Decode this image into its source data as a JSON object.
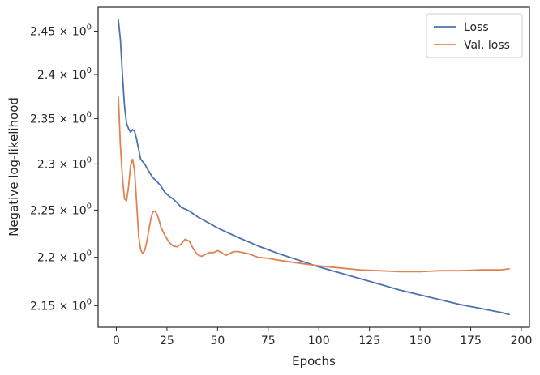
{
  "chart_data": {
    "type": "line",
    "title": "",
    "xlabel": "Epochs",
    "ylabel": "Negative log-likelihood",
    "xlim": [
      -9,
      204
    ],
    "ylim": [
      2.128,
      2.478
    ],
    "y_scale": "log",
    "grid": false,
    "legend_position": "top-right",
    "x_ticks": [
      0,
      25,
      50,
      75,
      100,
      125,
      150,
      175,
      200
    ],
    "x_tick_labels": [
      "0",
      "25",
      "50",
      "75",
      "100",
      "125",
      "150",
      "175",
      "200"
    ],
    "y_ticks": [
      2.15,
      2.2,
      2.25,
      2.3,
      2.35,
      2.4,
      2.45
    ],
    "y_tick_mantissas": [
      "2.15",
      "2.2",
      "2.25",
      "2.3",
      "2.35",
      "2.4",
      "2.45"
    ],
    "y_tick_base": "10",
    "y_tick_exponent": "0",
    "series": [
      {
        "name": "Loss",
        "color": "#4c72b0",
        "x": [
          1,
          2,
          3,
          4,
          5,
          6,
          7,
          8,
          9,
          10,
          11,
          12,
          14,
          16,
          18,
          20,
          22,
          24,
          26,
          28,
          30,
          32,
          34,
          36,
          38,
          40,
          45,
          50,
          55,
          60,
          70,
          80,
          90,
          100,
          110,
          120,
          130,
          140,
          150,
          160,
          170,
          180,
          190,
          194
        ],
        "y": [
          2.463,
          2.44,
          2.4,
          2.365,
          2.345,
          2.339,
          2.335,
          2.338,
          2.336,
          2.327,
          2.316,
          2.305,
          2.3,
          2.292,
          2.285,
          2.281,
          2.276,
          2.269,
          2.265,
          2.262,
          2.258,
          2.253,
          2.251,
          2.249,
          2.246,
          2.243,
          2.237,
          2.231,
          2.226,
          2.221,
          2.212,
          2.204,
          2.197,
          2.19,
          2.184,
          2.178,
          2.172,
          2.166,
          2.161,
          2.156,
          2.151,
          2.147,
          2.143,
          2.141
        ]
      },
      {
        "name": "Val. loss",
        "color": "#dd8452",
        "x": [
          1,
          2,
          3,
          4,
          5,
          6,
          7,
          8,
          9,
          10,
          11,
          12,
          13,
          14,
          15,
          16,
          17,
          18,
          19,
          20,
          21,
          22,
          24,
          26,
          28,
          30,
          32,
          34,
          36,
          38,
          40,
          42,
          44,
          46,
          48,
          50,
          52,
          54,
          56,
          58,
          60,
          65,
          70,
          75,
          80,
          90,
          100,
          110,
          120,
          130,
          140,
          150,
          160,
          170,
          180,
          190,
          194
        ],
        "y": [
          2.374,
          2.32,
          2.285,
          2.262,
          2.26,
          2.275,
          2.298,
          2.305,
          2.292,
          2.258,
          2.222,
          2.208,
          2.204,
          2.207,
          2.216,
          2.228,
          2.24,
          2.248,
          2.249,
          2.246,
          2.24,
          2.232,
          2.223,
          2.216,
          2.212,
          2.211,
          2.214,
          2.219,
          2.217,
          2.209,
          2.203,
          2.201,
          2.203,
          2.205,
          2.205,
          2.207,
          2.205,
          2.202,
          2.204,
          2.206,
          2.206,
          2.204,
          2.2,
          2.199,
          2.197,
          2.194,
          2.191,
          2.189,
          2.187,
          2.186,
          2.185,
          2.185,
          2.186,
          2.186,
          2.187,
          2.187,
          2.188
        ]
      }
    ]
  }
}
